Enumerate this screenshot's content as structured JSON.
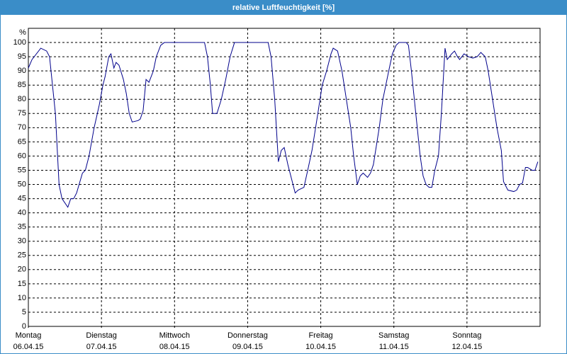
{
  "chart_data": {
    "type": "line",
    "title": "relative Luftfeuchtigkeit [%]",
    "y_label": "%",
    "xlim": [
      0,
      7
    ],
    "ylim": [
      0,
      105
    ],
    "xticks": [
      {
        "value": 0,
        "label": "Montag",
        "date": "06.04.15"
      },
      {
        "value": 1,
        "label": "Dienstag",
        "date": "07.04.15"
      },
      {
        "value": 2,
        "label": "Mittwoch",
        "date": "08.04.15"
      },
      {
        "value": 3,
        "label": "Donnerstag",
        "date": "09.04.15"
      },
      {
        "value": 4,
        "label": "Freitag",
        "date": "10.04.15"
      },
      {
        "value": 5,
        "label": "Samstag",
        "date": "11.04.15"
      },
      {
        "value": 6,
        "label": "Sonntag",
        "date": "12.04.15"
      }
    ],
    "yticks": [
      0,
      5,
      10,
      15,
      20,
      25,
      30,
      35,
      40,
      45,
      50,
      55,
      60,
      65,
      70,
      75,
      80,
      85,
      90,
      95,
      100
    ],
    "grid": true,
    "series": [
      {
        "color": "#00008b",
        "x": [
          0,
          0.05,
          0.17,
          0.25,
          0.29,
          0.37,
          0.42,
          0.46,
          0.54,
          0.58,
          0.62,
          0.66,
          0.74,
          0.78,
          0.83,
          0.9,
          0.97,
          1.02,
          1.05,
          1.1,
          1.13,
          1.17,
          1.2,
          1.24,
          1.3,
          1.34,
          1.38,
          1.42,
          1.5,
          1.53,
          1.57,
          1.61,
          1.65,
          1.71,
          1.75,
          1.81,
          1.86,
          2.41,
          2.45,
          2.49,
          2.52,
          2.58,
          2.64,
          2.7,
          2.76,
          2.82,
          3.28,
          3.32,
          3.37,
          3.42,
          3.46,
          3.5,
          3.55,
          3.59,
          3.65,
          3.69,
          3.77,
          3.83,
          3.88,
          3.96,
          4.02,
          4.08,
          4.14,
          4.17,
          4.23,
          4.29,
          4.35,
          4.41,
          4.45,
          4.5,
          4.54,
          4.58,
          4.64,
          4.68,
          4.72,
          4.8,
          4.85,
          4.93,
          4.98,
          5.03,
          5.07,
          5.17,
          5.2,
          5.24,
          5.3,
          5.36,
          5.4,
          5.44,
          5.48,
          5.52,
          5.56,
          5.61,
          5.65,
          5.7,
          5.73,
          5.79,
          5.83,
          5.87,
          5.9,
          5.96,
          6.02,
          6.08,
          6.14,
          6.19,
          6.25,
          6.29,
          6.35,
          6.41,
          6.47,
          6.5,
          6.56,
          6.64,
          6.68,
          6.72,
          6.76,
          6.8,
          6.83,
          6.89,
          6.93,
          6.97
        ],
        "values": [
          91,
          94,
          98,
          97,
          95,
          75,
          50,
          45,
          42,
          45,
          45,
          47,
          54,
          55,
          60,
          70,
          78,
          85,
          88,
          95,
          96,
          91,
          93,
          92,
          87,
          82,
          75,
          72,
          72.5,
          73,
          76,
          87,
          86,
          90,
          95,
          99,
          100,
          100,
          95,
          85,
          75,
          75,
          80,
          87,
          95,
          100,
          100,
          95,
          80,
          58,
          62,
          63,
          57,
          53,
          47,
          48,
          49,
          56,
          62,
          75,
          85,
          90,
          96,
          98,
          97,
          90,
          80,
          70,
          60,
          50,
          53,
          54,
          52.5,
          54,
          57,
          70,
          80,
          90,
          96,
          99,
          100,
          100,
          99,
          90,
          75,
          60,
          53,
          50,
          49,
          49,
          55,
          60,
          75,
          98,
          94,
          96,
          97,
          95,
          94,
          96,
          95,
          94.5,
          95,
          96.5,
          95,
          90,
          80,
          70,
          62,
          51,
          48,
          47.5,
          48,
          50,
          50.5,
          56,
          56,
          55,
          55,
          58
        ]
      }
    ]
  }
}
